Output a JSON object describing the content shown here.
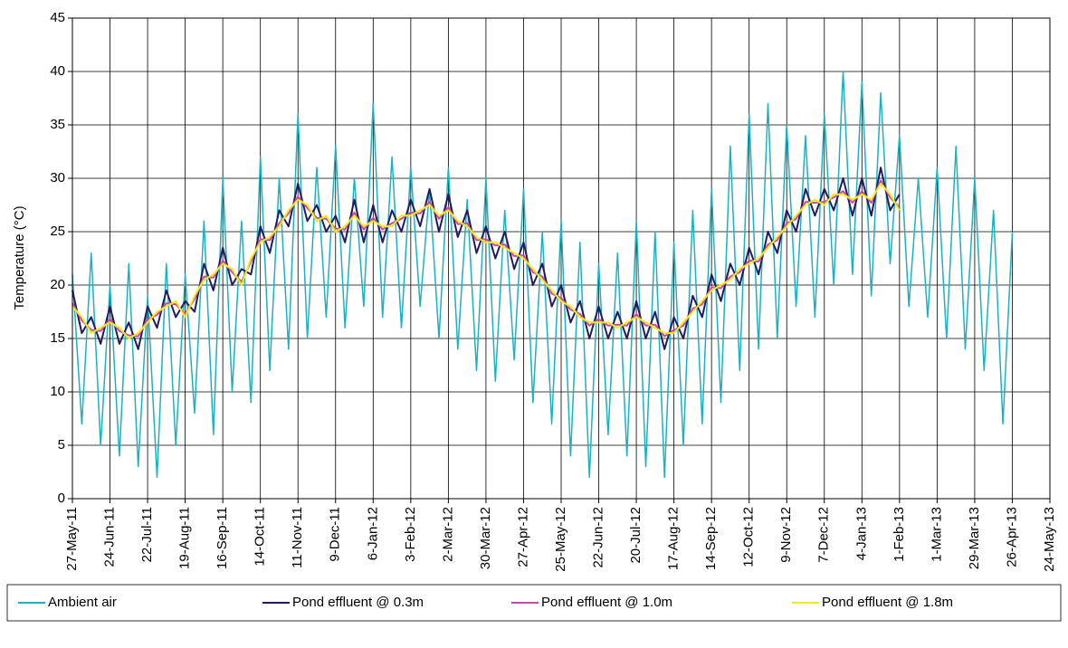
{
  "chart_data": {
    "type": "line",
    "y_label": "Temperature (°C)",
    "x": [
      "2011-05-27",
      "2011-06-03",
      "2011-06-10",
      "2011-06-17",
      "2011-06-24",
      "2011-07-01",
      "2011-07-08",
      "2011-07-15",
      "2011-07-22",
      "2011-07-29",
      "2011-08-05",
      "2011-08-12",
      "2011-08-19",
      "2011-08-26",
      "2011-09-02",
      "2011-09-09",
      "2011-09-16",
      "2011-09-23",
      "2011-09-30",
      "2011-10-07",
      "2011-10-14",
      "2011-10-21",
      "2011-10-28",
      "2011-11-04",
      "2011-11-11",
      "2011-11-18",
      "2011-11-25",
      "2011-12-02",
      "2011-12-09",
      "2011-12-16",
      "2011-12-23",
      "2011-12-30",
      "2012-01-06",
      "2012-01-13",
      "2012-01-20",
      "2012-01-27",
      "2012-02-03",
      "2012-02-10",
      "2012-02-17",
      "2012-02-24",
      "2012-03-02",
      "2012-03-09",
      "2012-03-16",
      "2012-03-23",
      "2012-03-30",
      "2012-04-06",
      "2012-04-13",
      "2012-04-20",
      "2012-04-27",
      "2012-05-04",
      "2012-05-11",
      "2012-05-18",
      "2012-05-25",
      "2012-06-01",
      "2012-06-08",
      "2012-06-15",
      "2012-06-22",
      "2012-06-29",
      "2012-07-06",
      "2012-07-13",
      "2012-07-20",
      "2012-07-27",
      "2012-08-03",
      "2012-08-10",
      "2012-08-17",
      "2012-08-24",
      "2012-08-31",
      "2012-09-07",
      "2012-09-14",
      "2012-09-21",
      "2012-09-28",
      "2012-10-05",
      "2012-10-12",
      "2012-10-19",
      "2012-10-26",
      "2012-11-02",
      "2012-11-09",
      "2012-11-16",
      "2012-11-23",
      "2012-11-30",
      "2012-12-07",
      "2012-12-14",
      "2012-12-21",
      "2012-12-28",
      "2013-01-04",
      "2013-01-11",
      "2013-01-18",
      "2013-01-25",
      "2013-02-01",
      "2013-02-08",
      "2013-02-15",
      "2013-02-22",
      "2013-03-01",
      "2013-03-08",
      "2013-03-15",
      "2013-03-22",
      "2013-03-29",
      "2013-04-05",
      "2013-04-12",
      "2013-04-19",
      "2013-04-26"
    ],
    "series": [
      {
        "name": "Ambient air",
        "color": "#1bb2bf",
        "values": [
          21,
          7,
          23,
          5,
          20,
          4,
          22,
          3,
          19,
          2,
          22,
          5,
          21,
          8,
          26,
          6,
          30,
          10,
          26,
          9,
          32,
          12,
          30,
          14,
          36,
          15,
          31,
          17,
          33,
          16,
          30,
          18,
          37,
          17,
          32,
          16,
          31,
          18,
          29,
          15,
          31,
          14,
          28,
          12,
          30,
          11,
          27,
          13,
          29,
          9,
          25,
          7,
          26,
          4,
          24,
          2,
          22,
          6,
          23,
          4,
          26,
          3,
          25,
          2,
          24,
          5,
          27,
          7,
          29,
          9,
          33,
          12,
          36,
          14,
          37,
          15,
          35,
          18,
          34,
          17,
          36,
          20,
          40,
          21,
          39,
          19,
          38,
          22,
          34,
          18,
          30,
          17,
          31,
          15,
          33,
          14,
          30,
          12,
          27,
          7,
          25
        ]
      },
      {
        "name": "Pond effluent @ 0.3m",
        "color": "#211c5f",
        "values": [
          19.5,
          15.5,
          17,
          14.5,
          18,
          14.5,
          16.5,
          14,
          18,
          16,
          19.5,
          17,
          18.5,
          17.5,
          22,
          19.5,
          23.5,
          20,
          21.5,
          21,
          25.5,
          23,
          27,
          25.5,
          29.5,
          26,
          27.5,
          25,
          26.5,
          24,
          28,
          24,
          27.5,
          24,
          27,
          25,
          28,
          25.5,
          29,
          25,
          28.5,
          24.5,
          27,
          23,
          25.5,
          22.5,
          25,
          21.5,
          24,
          20,
          22,
          18,
          20,
          16.5,
          18.5,
          15,
          18,
          15,
          17.5,
          15,
          18.5,
          15,
          17.5,
          14,
          17,
          15,
          19,
          17,
          21,
          18.5,
          22,
          20,
          23.5,
          21,
          25,
          23,
          27,
          25,
          29,
          26.5,
          29,
          27,
          30,
          26.5,
          30,
          26.5,
          31,
          27,
          28.5,
          null,
          null,
          null,
          null,
          null,
          null,
          null,
          null,
          null,
          null,
          null,
          null
        ]
      },
      {
        "name": "Pond effluent @ 1.0m",
        "color": "#c94aa6",
        "values": [
          18.3,
          16.7,
          15.8,
          15.7,
          16.8,
          15.7,
          15.3,
          15.2,
          16.8,
          17.2,
          18.3,
          18.2,
          17.3,
          18.7,
          20.8,
          20.7,
          22.3,
          21.2,
          20.3,
          22.2,
          24.3,
          24.2,
          25.8,
          26.7,
          28.3,
          27.2,
          26.3,
          26.2,
          25.3,
          25.2,
          26.8,
          25.2,
          26.3,
          25.2,
          25.8,
          26.2,
          26.8,
          26.7,
          27.8,
          26.2,
          27.3,
          25.7,
          25.8,
          24.2,
          24.3,
          23.7,
          23.8,
          22.7,
          22.8,
          21.2,
          20.8,
          19.2,
          18.8,
          17.7,
          17.3,
          16.2,
          16.8,
          16.2,
          16.3,
          16.2,
          17.3,
          16.2,
          16.3,
          15.2,
          15.8,
          16.2,
          17.8,
          18.2,
          19.8,
          19.7,
          20.8,
          21.2,
          22.3,
          22.2,
          23.8,
          24.2,
          25.8,
          26.2,
          27.8,
          27.7,
          27.8,
          28.2,
          28.8,
          27.7,
          28.8,
          27.7,
          29.8,
          28.2,
          27.3,
          null,
          null,
          null,
          null,
          null,
          null,
          null,
          null,
          null,
          null,
          null,
          null
        ]
      },
      {
        "name": "Pond effluent @ 1.8m",
        "color": "#f2ea16",
        "values": [
          18,
          17,
          15.5,
          16,
          16.5,
          16,
          15,
          15.5,
          16.5,
          17.5,
          18,
          18.5,
          17,
          19,
          20.5,
          21,
          22,
          21.5,
          20,
          22.5,
          24,
          24.5,
          25.5,
          27,
          28,
          27.5,
          26,
          26.5,
          25,
          25.5,
          26.5,
          25.5,
          26,
          25.5,
          25.5,
          26.5,
          26.5,
          27,
          27.5,
          26.5,
          27,
          26,
          25.5,
          24.5,
          24,
          24,
          23.5,
          23,
          22.5,
          21.5,
          20.5,
          19.5,
          18.5,
          18,
          17,
          16.5,
          16.5,
          16.5,
          16,
          16.5,
          17,
          16.5,
          16,
          15.5,
          15.5,
          16.5,
          17.5,
          18.5,
          19.5,
          20,
          20.5,
          21.5,
          22,
          22.5,
          23.5,
          24.5,
          25.5,
          26.5,
          27.5,
          28,
          27.5,
          28.5,
          28.5,
          28,
          28.5,
          28,
          29.5,
          28.5,
          27,
          null,
          null,
          null,
          null,
          null,
          null,
          null,
          null,
          null,
          null,
          null,
          null
        ]
      }
    ],
    "xlim": [
      "2011-05-27",
      "2013-05-24"
    ],
    "xticks": [
      {
        "value": "2011-05-27",
        "label": "27-May-11"
      },
      {
        "value": "2011-06-24",
        "label": "24-Jun-11"
      },
      {
        "value": "2011-07-22",
        "label": "22-Jul-11"
      },
      {
        "value": "2011-08-19",
        "label": "19-Aug-11"
      },
      {
        "value": "2011-09-16",
        "label": "16-Sep-11"
      },
      {
        "value": "2011-10-14",
        "label": "14-Oct-11"
      },
      {
        "value": "2011-11-11",
        "label": "11-Nov-11"
      },
      {
        "value": "2011-12-09",
        "label": "9-Dec-11"
      },
      {
        "value": "2012-01-06",
        "label": "6-Jan-12"
      },
      {
        "value": "2012-02-03",
        "label": "3-Feb-12"
      },
      {
        "value": "2012-03-02",
        "label": "2-Mar-12"
      },
      {
        "value": "2012-03-30",
        "label": "30-Mar-12"
      },
      {
        "value": "2012-04-27",
        "label": "27-Apr-12"
      },
      {
        "value": "2012-05-25",
        "label": "25-May-12"
      },
      {
        "value": "2012-06-22",
        "label": "22-Jun-12"
      },
      {
        "value": "2012-07-20",
        "label": "20-Jul-12"
      },
      {
        "value": "2012-08-17",
        "label": "17-Aug-12"
      },
      {
        "value": "2012-09-14",
        "label": "14-Sep-12"
      },
      {
        "value": "2012-10-12",
        "label": "12-Oct-12"
      },
      {
        "value": "2012-11-09",
        "label": "9-Nov-12"
      },
      {
        "value": "2012-12-07",
        "label": "7-Dec-12"
      },
      {
        "value": "2013-01-04",
        "label": "4-Jan-13"
      },
      {
        "value": "2013-02-01",
        "label": "1-Feb-13"
      },
      {
        "value": "2013-03-01",
        "label": "1-Mar-13"
      },
      {
        "value": "2013-03-29",
        "label": "29-Mar-13"
      },
      {
        "value": "2013-04-26",
        "label": "26-Apr-13"
      },
      {
        "value": "2013-05-24",
        "label": "24-May-13"
      }
    ],
    "ylim": [
      0,
      45
    ],
    "yticks": [
      0,
      5,
      10,
      15,
      20,
      25,
      30,
      35,
      40,
      45
    ],
    "grid": true,
    "legend": "bottom"
  }
}
